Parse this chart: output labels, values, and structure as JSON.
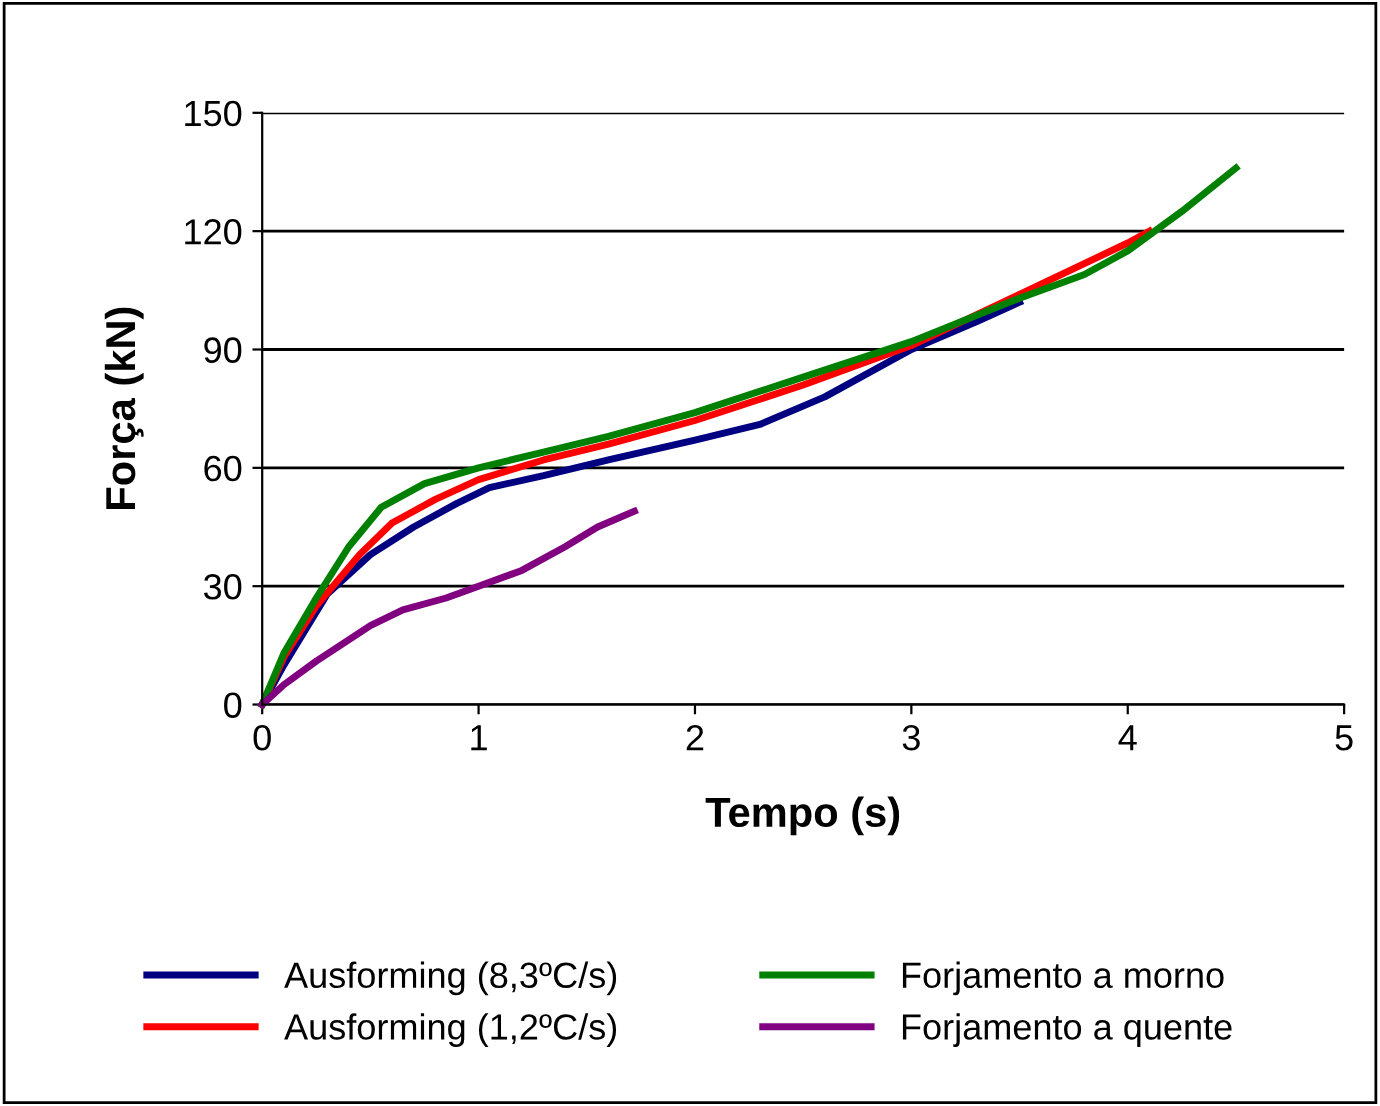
{
  "chart_data": {
    "type": "line",
    "xlabel": "Tempo (s)",
    "ylabel": "Força (kN)",
    "xlim": [
      0,
      5
    ],
    "xticks": [
      0,
      1,
      2,
      3,
      4,
      5
    ],
    "ylim": [
      0,
      150
    ],
    "yticks": [
      0,
      30,
      60,
      90,
      120,
      150
    ],
    "grid": "y",
    "legend": "bottom",
    "marker": "none",
    "line_style": "solid",
    "series": [
      {
        "name": "Ausforming (8,3ºC/s)",
        "color": "#000080",
        "x": [
          0,
          0.1,
          0.3,
          0.5,
          0.7,
          0.9,
          1.05,
          1.3,
          1.6,
          2.0,
          2.3,
          2.6,
          3.0,
          3.3,
          3.5
        ],
        "values": [
          0,
          10,
          28,
          38,
          45,
          51,
          55,
          58,
          62,
          67,
          71,
          78,
          90,
          97,
          102
        ]
      },
      {
        "name": "Ausforming (1,2ºC/s)",
        "color": "#ff0000",
        "x": [
          0,
          0.1,
          0.25,
          0.45,
          0.6,
          0.8,
          1.0,
          1.3,
          1.6,
          2.0,
          2.5,
          3.0,
          3.5,
          4.0,
          4.1
        ],
        "values": [
          0,
          12,
          25,
          38,
          46,
          52,
          57,
          62,
          66,
          72,
          81,
          91,
          104,
          117,
          120
        ]
      },
      {
        "name": "Forjamento a morno",
        "color": "#008000",
        "x": [
          0,
          0.1,
          0.25,
          0.4,
          0.55,
          0.75,
          1.0,
          1.3,
          1.6,
          2.0,
          2.5,
          3.0,
          3.5,
          3.8,
          4.0,
          4.25,
          4.5
        ],
        "values": [
          0,
          13,
          27,
          40,
          50,
          56,
          60,
          64,
          68,
          74,
          83,
          92,
          103,
          109,
          115,
          125,
          136
        ]
      },
      {
        "name": "Forjamento a quente",
        "color": "#800080",
        "x": [
          0,
          0.1,
          0.25,
          0.5,
          0.65,
          0.85,
          1.0,
          1.2,
          1.4,
          1.55,
          1.72
        ],
        "values": [
          0,
          5,
          11,
          20,
          24,
          27,
          30,
          34,
          40,
          45,
          49
        ]
      }
    ]
  }
}
